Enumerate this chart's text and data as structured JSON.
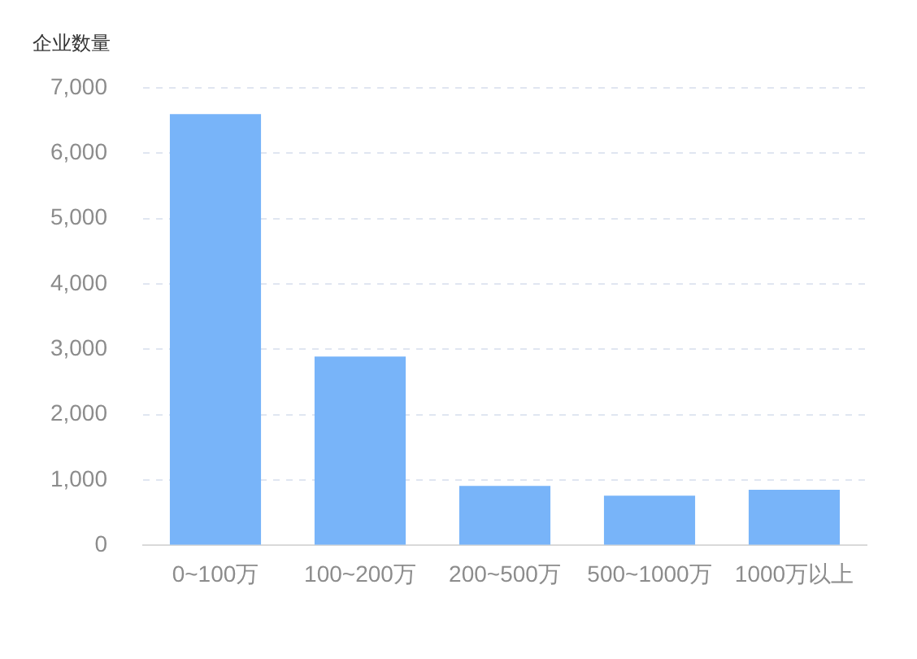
{
  "chart_data": {
    "type": "bar",
    "ylabel": "企业数量",
    "categories": [
      "0~100万",
      "100~200万",
      "200~500万",
      "500~1000万",
      "1000万以上"
    ],
    "values": [
      6600,
      2890,
      910,
      760,
      850
    ],
    "color": "#78b4f9",
    "ylim": [
      0,
      7000
    ],
    "yticks": [
      0,
      {
        "value": 1000,
        "label": "1,000"
      },
      {
        "value": 2000,
        "label": "2,000"
      },
      {
        "value": 3000,
        "label": "3,000"
      },
      {
        "value": 4000,
        "label": "4,000"
      },
      {
        "value": 5000,
        "label": "5,000"
      },
      {
        "value": 6000,
        "label": "6,000"
      },
      {
        "value": 7000,
        "label": "7,000"
      }
    ],
    "grid": "y"
  }
}
